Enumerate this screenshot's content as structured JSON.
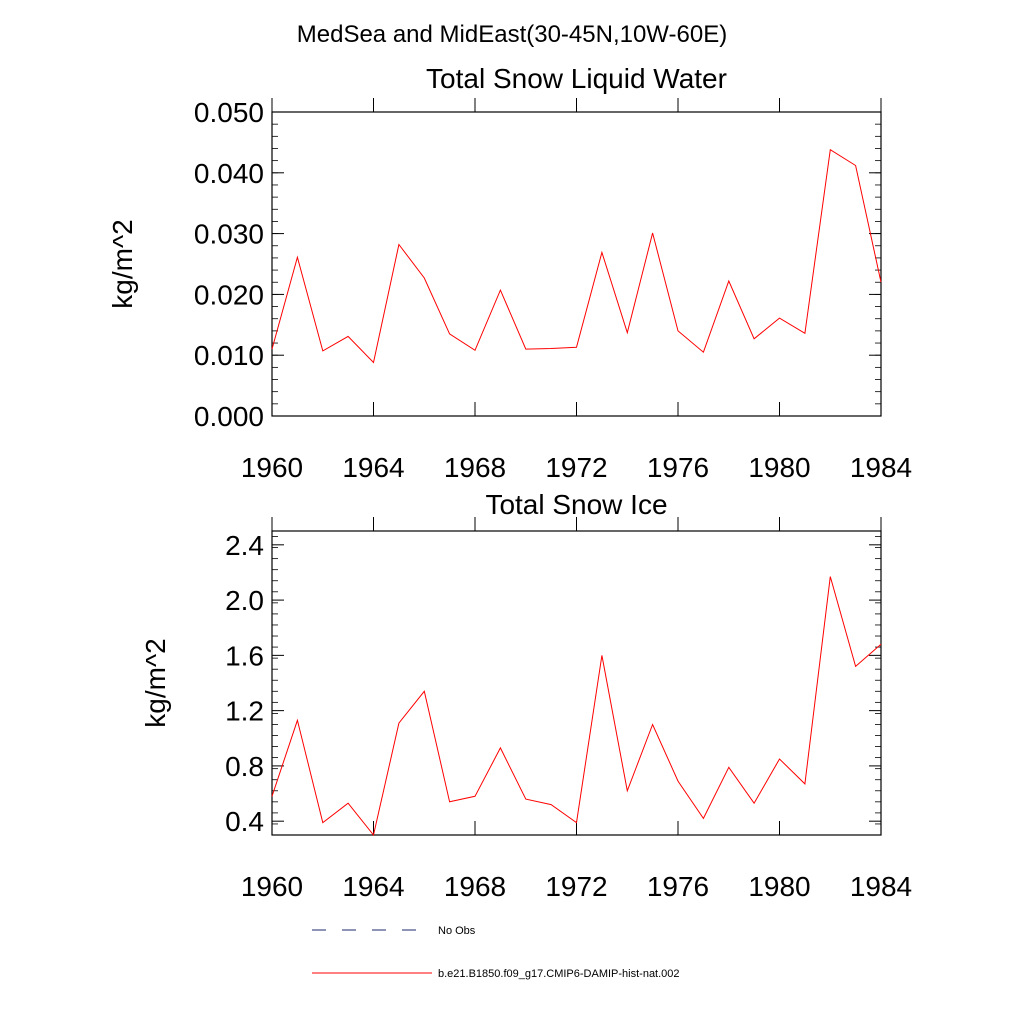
{
  "figure_title": "MedSea and MidEast(30-45N,10W-60E)",
  "colors": {
    "model_line": "#ff0000",
    "obs_line": "#1e2a6e",
    "axis": "#000000"
  },
  "legend": {
    "entries": [
      {
        "label": "No Obs",
        "style": "dashed",
        "color": "#1e2a6e"
      },
      {
        "label": "b.e21.B1850.f09_g17.CMIP6-DAMIP-hist-nat.002",
        "style": "solid",
        "color": "#ff0000"
      }
    ]
  },
  "chart_data": [
    {
      "type": "line",
      "title": "Total Snow Liquid Water",
      "xlabel": "",
      "ylabel": "kg/m^2",
      "xlim": [
        1960,
        1984
      ],
      "ylim": [
        0,
        0.05
      ],
      "xticks": [
        1960,
        1964,
        1968,
        1972,
        1976,
        1980,
        1984
      ],
      "xtick_labels": [
        "1960",
        "1964",
        "1968",
        "1972",
        "1976",
        "1980",
        "1984"
      ],
      "yticks": [
        0,
        0.01,
        0.02,
        0.03,
        0.04,
        0.05
      ],
      "ytick_labels": [
        "0.000",
        "0.010",
        "0.020",
        "0.030",
        "0.040",
        "0.050"
      ],
      "grid": false,
      "x": [
        1960,
        1961,
        1962,
        1963,
        1964,
        1965,
        1966,
        1967,
        1968,
        1969,
        1970,
        1971,
        1972,
        1973,
        1974,
        1975,
        1976,
        1977,
        1978,
        1979,
        1980,
        1981,
        1982,
        1983,
        1984
      ],
      "series": [
        {
          "name": "b.e21.B1850.f09_g17.CMIP6-DAMIP-hist-nat.002",
          "color": "#ff0000",
          "values": [
            0.011,
            0.0261,
            0.0107,
            0.0131,
            0.0088,
            0.0282,
            0.0227,
            0.0135,
            0.0108,
            0.0207,
            0.011,
            0.0111,
            0.0113,
            0.0269,
            0.0137,
            0.0301,
            0.014,
            0.0105,
            0.0222,
            0.0127,
            0.0161,
            0.0136,
            0.0438,
            0.0412,
            0.022
          ]
        }
      ]
    },
    {
      "type": "line",
      "title": "Total Snow Ice",
      "xlabel": "",
      "ylabel": "kg/m^2",
      "xlim": [
        1960,
        1984
      ],
      "ylim": [
        0.3,
        2.5
      ],
      "xticks": [
        1960,
        1964,
        1968,
        1972,
        1976,
        1980,
        1984
      ],
      "xtick_labels": [
        "1960",
        "1964",
        "1968",
        "1972",
        "1976",
        "1980",
        "1984"
      ],
      "yticks": [
        0.4,
        0.8,
        1.2,
        1.6,
        2.0,
        2.4
      ],
      "ytick_labels": [
        "0.4",
        "0.8",
        "1.2",
        "1.6",
        "2.0",
        "2.4"
      ],
      "grid": false,
      "x": [
        1960,
        1961,
        1962,
        1963,
        1964,
        1965,
        1966,
        1967,
        1968,
        1969,
        1970,
        1971,
        1972,
        1973,
        1974,
        1975,
        1976,
        1977,
        1978,
        1979,
        1980,
        1981,
        1982,
        1983,
        1984
      ],
      "series": [
        {
          "name": "b.e21.B1850.f09_g17.CMIP6-DAMIP-hist-nat.002",
          "color": "#ff0000",
          "values": [
            0.58,
            1.13,
            0.39,
            0.53,
            0.3,
            1.11,
            1.34,
            0.54,
            0.58,
            0.93,
            0.56,
            0.52,
            0.39,
            1.6,
            0.62,
            1.1,
            0.69,
            0.42,
            0.79,
            0.53,
            0.85,
            0.67,
            2.17,
            1.52,
            1.68
          ]
        }
      ]
    }
  ]
}
